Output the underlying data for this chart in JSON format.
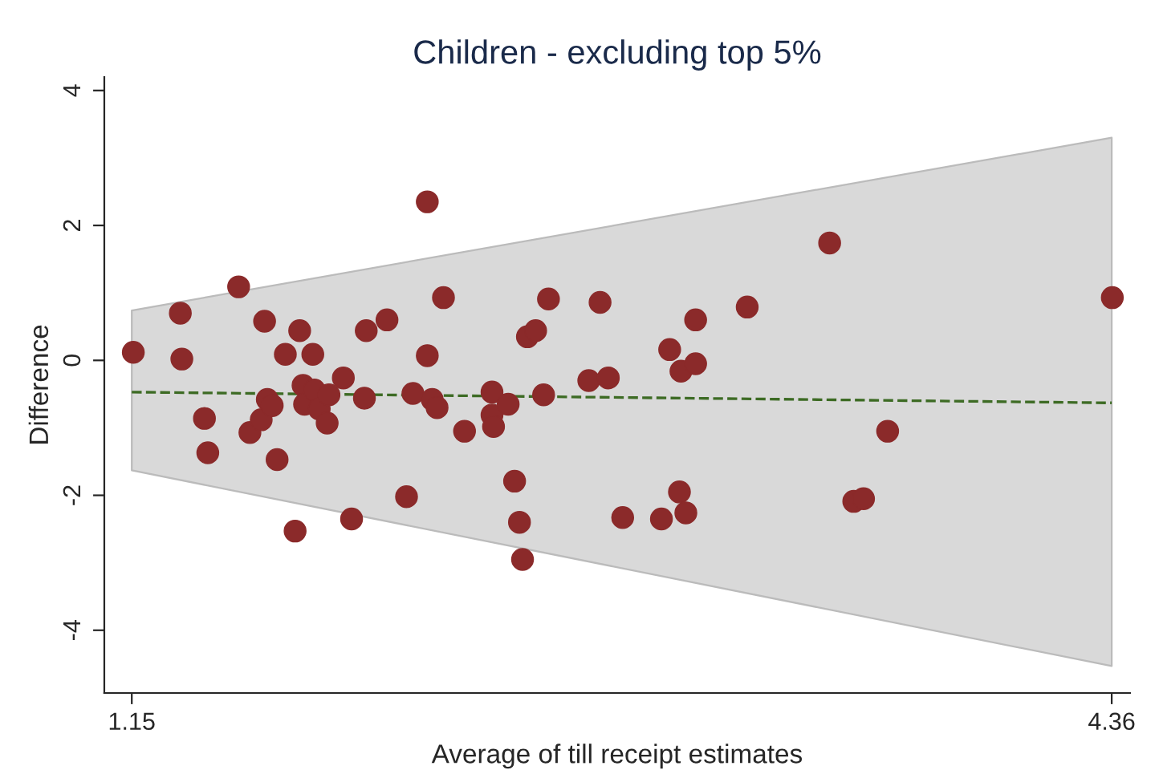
{
  "chart_data": {
    "type": "scatter",
    "title": "Children - excluding top 5%",
    "xlabel": "Average of till receipt estimates",
    "ylabel": "Difference",
    "xlim": [
      1.06,
      4.42
    ],
    "ylim": [
      -4.93,
      4.2
    ],
    "xticks": [
      1.15,
      4.36
    ],
    "yticks": [
      -4,
      -2,
      0,
      2,
      4
    ],
    "grid": false,
    "legend": false,
    "series": [
      {
        "type": "line",
        "color": "#3d6b24",
        "line_style": "dashed",
        "marker": "none",
        "x": [
          1.15,
          4.36
        ],
        "values": [
          -0.47,
          -0.63
        ],
        "lower": [
          -1.63,
          -4.53
        ],
        "upper": [
          0.74,
          3.3
        ]
      },
      {
        "color": "#8b2a2a",
        "marker": "circle",
        "x": [
          1.155,
          1.309,
          1.314,
          1.388,
          1.399,
          1.5,
          1.537,
          1.574,
          1.585,
          1.594,
          1.61,
          1.626,
          1.653,
          1.685,
          1.7,
          1.711,
          1.716,
          1.743,
          1.748,
          1.764,
          1.79,
          1.796,
          1.843,
          1.87,
          1.918,
          1.912,
          1.986,
          2.05,
          2.071,
          2.118,
          2.118,
          2.134,
          2.15,
          2.171,
          2.24,
          2.33,
          2.33,
          2.335,
          2.383,
          2.404,
          2.42,
          2.43,
          2.446,
          2.473,
          2.499,
          2.515,
          2.647,
          2.684,
          2.711,
          2.758,
          2.885,
          2.912,
          2.944,
          2.949,
          2.965,
          2.997,
          2.997,
          3.166,
          3.436,
          3.515,
          3.547,
          3.626,
          4.362
        ],
        "values": [
          0.12,
          0.7,
          0.02,
          -0.86,
          -1.37,
          1.09,
          -1.07,
          -0.88,
          0.58,
          -0.58,
          -0.67,
          -1.47,
          0.09,
          -2.53,
          0.44,
          -0.37,
          -0.65,
          0.09,
          -0.44,
          -0.72,
          -0.93,
          -0.51,
          -0.26,
          -2.35,
          0.44,
          -0.56,
          0.6,
          -2.02,
          -0.49,
          2.35,
          0.07,
          -0.58,
          -0.7,
          0.93,
          -1.05,
          -0.47,
          -0.81,
          -0.98,
          -0.65,
          -1.79,
          -2.4,
          -2.95,
          0.35,
          0.44,
          -0.51,
          0.91,
          -0.3,
          0.86,
          -0.26,
          -2.33,
          -2.35,
          0.16,
          -1.95,
          -0.16,
          -2.26,
          -0.05,
          0.6,
          0.79,
          1.74,
          -2.09,
          -2.05,
          -1.05,
          0.93
        ]
      }
    ]
  }
}
